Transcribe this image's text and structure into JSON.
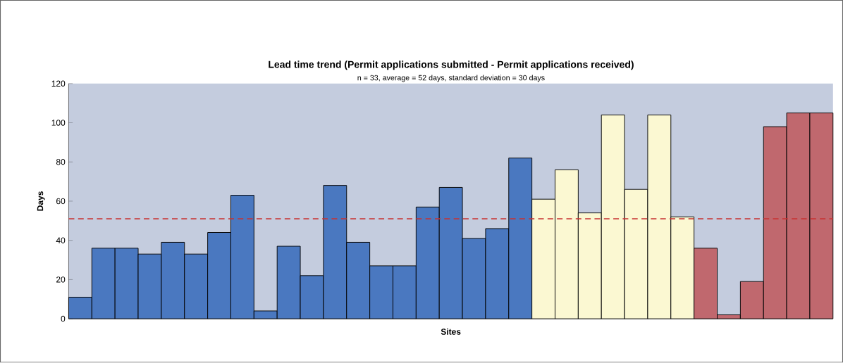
{
  "chart_data": {
    "type": "bar",
    "title": "Lead time trend (Permit applications submitted - Permit applications received)",
    "subtitle": "n = 33, average = 52 days, standard deviation = 30 days",
    "xlabel": "Sites",
    "ylabel": "Days",
    "categories": [
      null,
      null,
      null,
      null,
      null,
      null,
      null,
      null,
      null,
      null,
      null,
      null,
      null,
      null,
      null,
      null,
      null,
      null,
      null,
      null,
      null,
      null,
      null,
      null,
      null,
      null,
      null,
      null,
      null,
      null,
      null,
      null,
      null
    ],
    "values": [
      11,
      36,
      36,
      33,
      39,
      33,
      44,
      63,
      4,
      37,
      22,
      68,
      39,
      27,
      27,
      57,
      67,
      41,
      46,
      82,
      61,
      76,
      54,
      104,
      66,
      104,
      52,
      36,
      2,
      19,
      98,
      105,
      105
    ],
    "colors": [
      "#4a78c0",
      "#4a78c0",
      "#4a78c0",
      "#4a78c0",
      "#4a78c0",
      "#4a78c0",
      "#4a78c0",
      "#4a78c0",
      "#4a78c0",
      "#4a78c0",
      "#4a78c0",
      "#4a78c0",
      "#4a78c0",
      "#4a78c0",
      "#4a78c0",
      "#4a78c0",
      "#4a78c0",
      "#4a78c0",
      "#4a78c0",
      "#4a78c0",
      "#fbf8d2",
      "#fbf8d2",
      "#fbf8d2",
      "#fbf8d2",
      "#fbf8d2",
      "#fbf8d2",
      "#fbf8d2",
      "#c0686e",
      "#c0686e",
      "#c0686e",
      "#c0686e",
      "#c0686e",
      "#c0686e"
    ],
    "ylim": [
      0,
      120
    ],
    "yticks": [
      0,
      20,
      40,
      60,
      80,
      100,
      120
    ],
    "ref_lines": [
      {
        "axis": "y",
        "value": 51,
        "color": "#c83232",
        "line_style": "dashed"
      }
    ]
  }
}
